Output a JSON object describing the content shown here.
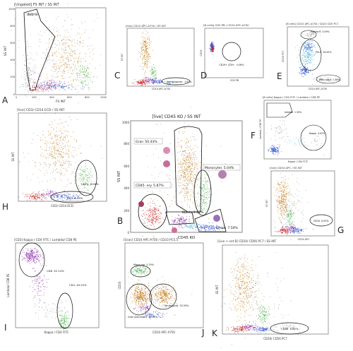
{
  "figure": {
    "panels": [
      {
        "id": "A",
        "letter": "A",
        "title": "[Ungated] FS INT / SS INT",
        "xlabel": "FS INT",
        "ylabel": "SS INT",
        "ticks_x": [
          "0",
          "200",
          "400",
          "600",
          "800",
          "1000"
        ],
        "ticks_y": [
          "0",
          "200",
          "400",
          "600",
          "800",
          "1000"
        ],
        "gates": [
          {
            "label": "debris",
            "value": ""
          }
        ]
      },
      {
        "id": "C",
        "letter": "C",
        "title": "[live] CD10 APC-A750 / SS INT",
        "xlabel": "CD10 APC-A750",
        "ylabel": "SS INT",
        "gates": [
          {
            "label": "Hematogones",
            "value": "1.81%"
          }
        ]
      },
      {
        "id": "D",
        "letter": "D",
        "title": "[B cells] CD5 PB / CD19 APC-A700",
        "xlabel": "CD5 PB",
        "ylabel": "CD19",
        "gates": [
          {
            "label": "CD19+ CD5+",
            "value": "0.06%"
          }
        ]
      },
      {
        "id": "E",
        "letter": "E",
        "title": "[B cells] CD10 APC-A750 / CD20 CD5 PC7",
        "xlabel": "CD10 APC-A750",
        "ylabel": "CD20 PC7",
        "gates": [
          {
            "label": "Mature B",
            "value": "2.09%"
          },
          {
            "label": "Pre-B",
            "value": "16.45%"
          },
          {
            "label": "Early pre-B",
            "value": "1.85%"
          }
        ]
      },
      {
        "id": "F",
        "letter": "F",
        "title": "[B cells] Kappa / CD4 FITC / Lambda / CD8 PE",
        "xlabel": "Kappa / CD4 FITC",
        "ylabel": "Lambda / CD8 PE",
        "gates": [
          {
            "label": "lambda",
            "value": "1.30%"
          },
          {
            "label": "Kappa",
            "value": "4.02%"
          }
        ]
      },
      {
        "id": "H",
        "letter": "H",
        "title": "[live] CD3/ CD14 ECD / SS INT",
        "xlabel": "CD3/ CD14 ECD",
        "ylabel": "SS INT",
        "gates": [
          {
            "label": "CD14",
            "value": "6.56%"
          },
          {
            "label": "CD3",
            "value": "6.95%"
          }
        ]
      },
      {
        "id": "B",
        "letter": "B",
        "title": "[live] CD45 KO / SS INT",
        "xlabel": "CD45 KO",
        "ylabel": "SS INT",
        "ticks_y": [
          "0",
          "200",
          "400",
          "600",
          "800",
          "1000"
        ],
        "gates": [
          {
            "label": "Gran",
            "value": "50.43%"
          },
          {
            "label": "Monocytes",
            "value": "5.04%"
          },
          {
            "label": "CD45- ery",
            "value": "5.87%"
          },
          {
            "label": "Blasts",
            "value": "9.82%"
          },
          {
            "label": "lymph",
            "value": "7.50%"
          }
        ]
      },
      {
        "id": "G",
        "letter": "G",
        "title": "[live] CD34 APC / SS INT",
        "xlabel": "CD34 APC",
        "ylabel": "SS INT",
        "gates": [
          {
            "label": "CD34",
            "value": "0.93%"
          }
        ]
      },
      {
        "id": "I",
        "letter": "I",
        "title": "[CD3] Kappa / CD4 FITC / Lambda/ CD8 PE",
        "xlabel": "Kappa / CD4 FITC",
        "ylabel": "Lambda/ CD8 PE",
        "gates": [
          {
            "label": "CD8",
            "value": "42.14%"
          },
          {
            "label": "CD4",
            "value": "49.22%"
          }
        ]
      },
      {
        "id": "J",
        "letter": "J",
        "title": "[Gran] CD10 APC-A750 / CD33 PC5.5",
        "xlabel": "CD10 APC-A750",
        "ylabel": "CD33",
        "gates": [
          {
            "label": "Mono-pre",
            "value": "2.79%"
          },
          {
            "label": "Neutrophils",
            "value": "32.59%"
          },
          {
            "label": "Gran precursors",
            "value": "59.39%"
          }
        ]
      },
      {
        "id": "K",
        "letter": "K",
        "title": "[Live + not B] CD20/ CD56 PC7 / SS INT",
        "xlabel": "CD20/ CD56 PC7",
        "ylabel": "SS INT",
        "gates": [
          {
            "label": "CD56",
            "value": "0.82%"
          }
        ]
      }
    ]
  },
  "colors": {
    "orange": "#c77b14",
    "green": "#4fb04f",
    "red": "#c4201e",
    "blue": "#3a5bd0",
    "purple": "#8b2fa8",
    "cyan": "#55b7e0",
    "grey": "#9a9a9a",
    "frame": "#555555",
    "gate": "#111111"
  }
}
